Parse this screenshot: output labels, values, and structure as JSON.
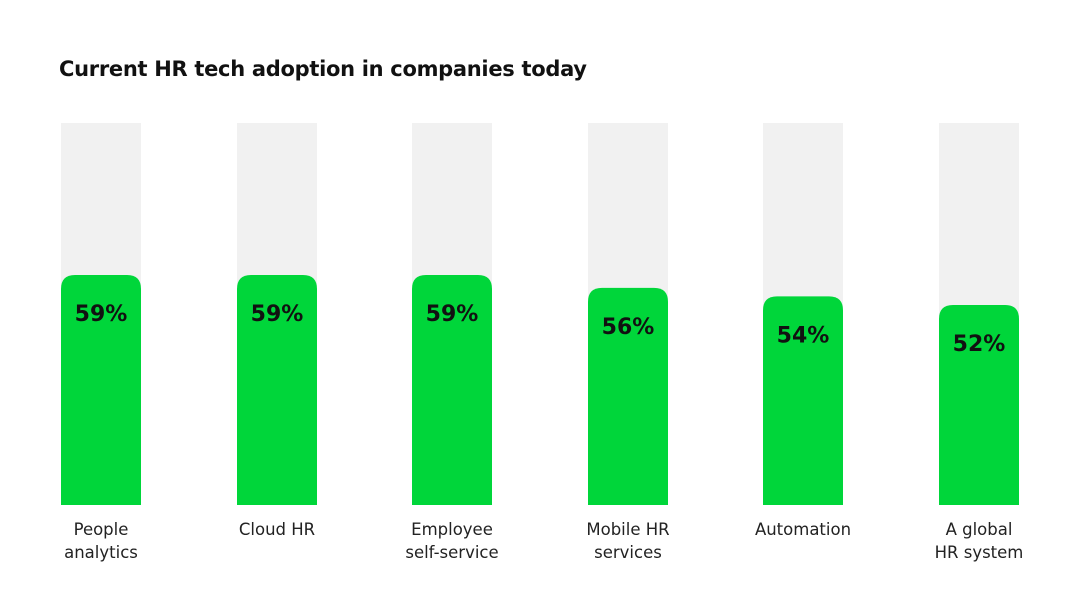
{
  "chart_data": {
    "type": "bar",
    "title": "Current HR tech adoption in companies today",
    "categories": [
      [
        "People",
        "analytics"
      ],
      [
        "Cloud HR"
      ],
      [
        "Employee",
        "self-service"
      ],
      [
        "Mobile HR",
        "services"
      ],
      [
        "Automation"
      ],
      [
        "A global",
        "HR system"
      ]
    ],
    "values": [
      59,
      59,
      59,
      56,
      54,
      52
    ],
    "value_labels": [
      "59%",
      "59%",
      "59%",
      "56%",
      "54%",
      "52%"
    ],
    "ylim": [
      0,
      100
    ],
    "bar_color": "#00d63a",
    "track_color": "#f1f1f1",
    "grid": false,
    "legend": "none"
  }
}
